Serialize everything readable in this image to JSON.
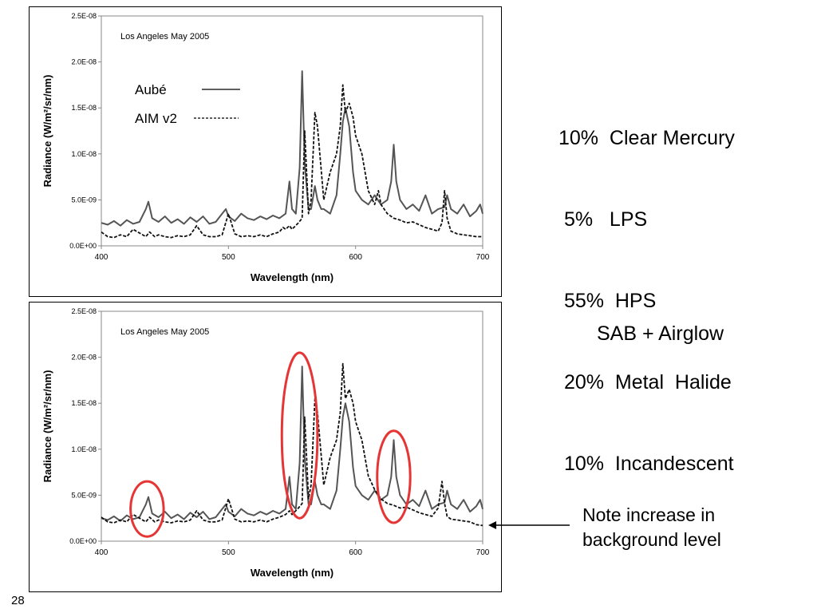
{
  "chart_data": [
    {
      "type": "line",
      "title": "Los Angeles  May 2005",
      "xlabel": "Wavelength (nm)",
      "ylabel": "Radiance (W/m²/sr/nm)",
      "xlim": [
        400,
        700
      ],
      "ylim": [
        0,
        2.5e-08
      ],
      "xticks": [
        "400",
        "500",
        "600",
        "700"
      ],
      "yticks": [
        "0.0E+00",
        "5.0E-09",
        "1.0E-08",
        "1.5E-08",
        "2.0E-08",
        "2.5E-08"
      ],
      "legend": {
        "position": "top-left",
        "entries": [
          {
            "name": "Aubé",
            "style": "solid"
          },
          {
            "name": "AIM v2",
            "style": "dashed"
          }
        ]
      },
      "series": [
        {
          "name": "Aubé",
          "style": "solid",
          "color": "#555555",
          "x": [
            400,
            405,
            410,
            415,
            420,
            425,
            430,
            435,
            437,
            440,
            445,
            450,
            455,
            460,
            465,
            470,
            475,
            480,
            485,
            490,
            495,
            498,
            500,
            505,
            510,
            515,
            520,
            525,
            530,
            535,
            540,
            545,
            548,
            550,
            553,
            556,
            558,
            560,
            563,
            565,
            568,
            570,
            573,
            575,
            580,
            585,
            588,
            590,
            592,
            595,
            598,
            600,
            605,
            610,
            615,
            620,
            625,
            628,
            630,
            632,
            635,
            640,
            645,
            650,
            655,
            660,
            665,
            670,
            672,
            675,
            680,
            685,
            690,
            695,
            698,
            700
          ],
          "y": [
            2.5e-09,
            2.3e-09,
            2.7e-09,
            2.2e-09,
            2.8e-09,
            2.4e-09,
            2.6e-09,
            4e-09,
            4.8e-09,
            3e-09,
            2.6e-09,
            3.2e-09,
            2.5e-09,
            2.9e-09,
            2.4e-09,
            3.1e-09,
            2.6e-09,
            3.2e-09,
            2.4e-09,
            2.6e-09,
            3.5e-09,
            4e-09,
            3.2e-09,
            2.7e-09,
            3.5e-09,
            3e-09,
            2.8e-09,
            3.2e-09,
            2.9e-09,
            3.3e-09,
            3e-09,
            3.5e-09,
            7e-09,
            4e-09,
            3.5e-09,
            8.5e-09,
            1.9e-08,
            9e-09,
            4e-09,
            4e-09,
            6.5e-09,
            5e-09,
            4e-09,
            4e-09,
            3.5e-09,
            5.5e-09,
            1e-08,
            1.35e-08,
            1.5e-08,
            1.3e-08,
            8e-09,
            6e-09,
            5e-09,
            4.5e-09,
            5.5e-09,
            4.5e-09,
            5e-09,
            7e-09,
            1.1e-08,
            7e-09,
            5e-09,
            4e-09,
            4.5e-09,
            3.8e-09,
            5.5e-09,
            3.5e-09,
            4e-09,
            4.2e-09,
            5.5e-09,
            4e-09,
            3.5e-09,
            4.5e-09,
            3.2e-09,
            3.8e-09,
            4.5e-09,
            3.5e-09
          ]
        },
        {
          "name": "AIM v2",
          "style": "dashed",
          "color": "#111111",
          "x": [
            400,
            405,
            410,
            415,
            420,
            425,
            430,
            435,
            438,
            442,
            445,
            450,
            455,
            460,
            465,
            470,
            475,
            480,
            485,
            490,
            495,
            500,
            505,
            510,
            515,
            520,
            525,
            530,
            535,
            540,
            543,
            545,
            548,
            550,
            555,
            558,
            560,
            563,
            565,
            568,
            570,
            575,
            580,
            585,
            588,
            590,
            592,
            595,
            598,
            600,
            605,
            610,
            615,
            618,
            620,
            625,
            630,
            635,
            640,
            645,
            650,
            655,
            660,
            665,
            668,
            670,
            672,
            675,
            680,
            685,
            690,
            695,
            700
          ],
          "y": [
            1.5e-09,
            1e-09,
            9e-10,
            1.2e-09,
            1e-09,
            1.8e-09,
            1.4e-09,
            1e-09,
            1.5e-09,
            1e-09,
            1.2e-09,
            1e-09,
            9e-10,
            1.1e-09,
            1e-09,
            1.2e-09,
            2.2e-09,
            1.2e-09,
            1e-09,
            1e-09,
            1.2e-09,
            3.5e-09,
            1.3e-09,
            1e-09,
            1.1e-09,
            1e-09,
            1.2e-09,
            1e-09,
            1.3e-09,
            1.5e-09,
            2e-09,
            1.8e-09,
            2.2e-09,
            1.8e-09,
            2.5e-09,
            3e-09,
            1.25e-08,
            3.5e-09,
            5e-09,
            1.45e-08,
            1.3e-08,
            5e-09,
            8e-09,
            1e-08,
            1.3e-08,
            1.75e-08,
            1.45e-08,
            1.55e-08,
            1.4e-08,
            1.2e-08,
            1e-08,
            6e-09,
            4.5e-09,
            6e-09,
            4.5e-09,
            3.5e-09,
            3e-09,
            2.8e-09,
            2.5e-09,
            2.6e-09,
            2.3e-09,
            2e-09,
            1.8e-09,
            1.6e-09,
            2.5e-09,
            6e-09,
            3e-09,
            1.6e-09,
            1.3e-09,
            1.2e-09,
            1.1e-09,
            1e-09,
            1e-09
          ]
        }
      ]
    },
    {
      "type": "line",
      "title": "Los Angeles  May 2005",
      "xlabel": "Wavelength (nm)",
      "ylabel": "Radiance (W/m²/sr/nm)",
      "xlim": [
        400,
        700
      ],
      "ylim": [
        0,
        2.5e-08
      ],
      "xticks": [
        "400",
        "500",
        "600",
        "700"
      ],
      "yticks": [
        "0.0E+00",
        "5.0E-09",
        "1.0E-08",
        "1.5E-08",
        "2.0E-08",
        "2.5E-08"
      ],
      "annotations": [
        {
          "type": "ellipse",
          "color": "#e53535",
          "x_center": 436,
          "y_center": 3.5e-09,
          "x_halfwidth": 13,
          "y_halfheight": 3e-09
        },
        {
          "type": "ellipse",
          "color": "#e53535",
          "x_center": 556,
          "y_center": 1.15e-08,
          "x_halfwidth": 14,
          "y_halfheight": 9e-09
        },
        {
          "type": "ellipse",
          "color": "#e53535",
          "x_center": 630,
          "y_center": 7e-09,
          "x_halfwidth": 13,
          "y_halfheight": 5e-09
        }
      ],
      "series": [
        {
          "name": "Aubé",
          "style": "solid",
          "color": "#555555",
          "x": [
            400,
            405,
            410,
            415,
            420,
            425,
            430,
            435,
            437,
            440,
            445,
            450,
            455,
            460,
            465,
            470,
            475,
            480,
            485,
            490,
            495,
            498,
            500,
            505,
            510,
            515,
            520,
            525,
            530,
            535,
            540,
            545,
            548,
            550,
            553,
            556,
            558,
            560,
            563,
            565,
            568,
            570,
            573,
            575,
            580,
            585,
            588,
            590,
            592,
            595,
            598,
            600,
            605,
            610,
            615,
            620,
            625,
            628,
            630,
            632,
            635,
            640,
            645,
            650,
            655,
            660,
            665,
            670,
            672,
            675,
            680,
            685,
            690,
            695,
            698,
            700
          ],
          "y": [
            2.5e-09,
            2.3e-09,
            2.7e-09,
            2.2e-09,
            2.8e-09,
            2.4e-09,
            2.6e-09,
            4e-09,
            4.8e-09,
            3e-09,
            2.6e-09,
            3.2e-09,
            2.5e-09,
            2.9e-09,
            2.4e-09,
            3.1e-09,
            2.6e-09,
            3.2e-09,
            2.4e-09,
            2.6e-09,
            3.5e-09,
            4e-09,
            3.2e-09,
            2.7e-09,
            3.5e-09,
            3e-09,
            2.8e-09,
            3.2e-09,
            2.9e-09,
            3.3e-09,
            3e-09,
            3.5e-09,
            7e-09,
            4e-09,
            3.5e-09,
            8.5e-09,
            1.9e-08,
            9e-09,
            4e-09,
            4e-09,
            6.5e-09,
            5e-09,
            4e-09,
            4e-09,
            3.5e-09,
            5.5e-09,
            1e-08,
            1.35e-08,
            1.5e-08,
            1.3e-08,
            8e-09,
            6e-09,
            5e-09,
            4.5e-09,
            5.5e-09,
            4.5e-09,
            5e-09,
            7e-09,
            1.1e-08,
            7e-09,
            5e-09,
            4e-09,
            4.5e-09,
            3.8e-09,
            5.5e-09,
            3.5e-09,
            4e-09,
            4.2e-09,
            5.5e-09,
            4e-09,
            3.5e-09,
            4.5e-09,
            3.2e-09,
            3.8e-09,
            4.5e-09,
            3.5e-09
          ]
        },
        {
          "name": "AIM v2",
          "style": "dashed",
          "color": "#111111",
          "x": [
            400,
            405,
            410,
            415,
            420,
            425,
            430,
            435,
            438,
            442,
            445,
            450,
            455,
            460,
            465,
            470,
            475,
            480,
            485,
            490,
            495,
            500,
            505,
            510,
            515,
            520,
            525,
            530,
            535,
            540,
            545,
            548,
            550,
            555,
            558,
            560,
            563,
            565,
            568,
            570,
            575,
            580,
            585,
            588,
            590,
            592,
            595,
            598,
            600,
            605,
            610,
            615,
            620,
            625,
            630,
            635,
            640,
            645,
            650,
            655,
            660,
            665,
            668,
            670,
            672,
            675,
            680,
            685,
            690,
            695,
            700
          ],
          "y": [
            2.6e-09,
            2.1e-09,
            2e-09,
            2.3e-09,
            2.1e-09,
            2.9e-09,
            2.5e-09,
            2.1e-09,
            2.6e-09,
            2.1e-09,
            2.3e-09,
            2.1e-09,
            2e-09,
            2.2e-09,
            2.1e-09,
            2.3e-09,
            3.3e-09,
            2.3e-09,
            2.1e-09,
            2.1e-09,
            2.3e-09,
            4.6e-09,
            2.4e-09,
            2.1e-09,
            2.2e-09,
            2.1e-09,
            2.3e-09,
            2.1e-09,
            2.4e-09,
            2.6e-09,
            2.9e-09,
            3.3e-09,
            2.9e-09,
            3.6e-09,
            4.1e-09,
            1.35e-08,
            4.6e-09,
            6.1e-09,
            1.55e-08,
            1.4e-08,
            6.1e-09,
            9.1e-09,
            1.1e-08,
            1.4e-08,
            1.93e-08,
            1.55e-08,
            1.65e-08,
            1.5e-08,
            1.3e-08,
            1.1e-08,
            7.1e-09,
            5.6e-09,
            4.6e-09,
            4.1e-09,
            3.9e-09,
            3.6e-09,
            3.7e-09,
            3.4e-09,
            3.1e-09,
            2.9e-09,
            2.7e-09,
            3.6e-09,
            6.5e-09,
            4.1e-09,
            2.7e-09,
            2.4e-09,
            2.3e-09,
            2.2e-09,
            2.1e-09,
            1.8e-09,
            1.7e-09
          ]
        }
      ]
    }
  ],
  "side_text": {
    "mix_lines": [
      "10%  Clear Mercury",
      " 5%   LPS",
      " 55%  HPS",
      " 20%  Metal  Halide",
      " 10%  Incandescent"
    ],
    "sab": "SAB + Airglow",
    "note_line1": "Note increase in",
    "note_line2": "background level"
  },
  "slide_number": "28"
}
